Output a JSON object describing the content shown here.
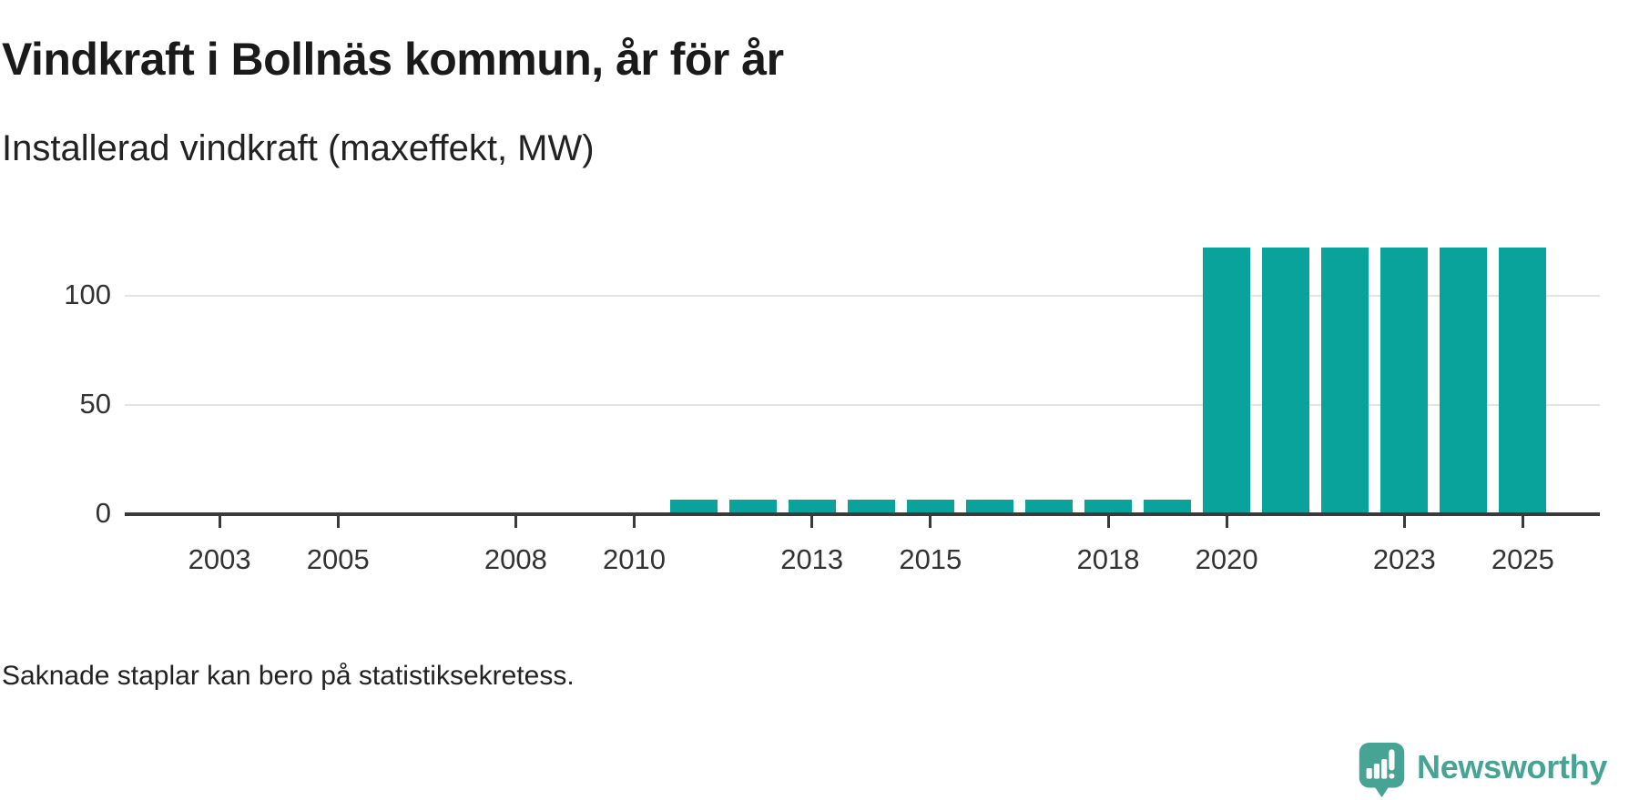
{
  "header": {
    "title": "Vindkraft i Bollnäs kommun, år för år",
    "subtitle": "Installerad vindkraft (maxeffekt, MW)"
  },
  "footnote": "Saknade staplar kan bero på statistiksekretess.",
  "branding": {
    "logo_text": "Newsworthy",
    "logo_icon": "newsworthy-speech-bubble-bar-chart-icon",
    "logo_color": "#47a393"
  },
  "colors": {
    "bar": "#09a39c",
    "axis": "#3a3a3a",
    "grid": "#e4e4e4",
    "title_text": "#1a1a1a",
    "body_text": "#222222",
    "tick_text": "#333333",
    "background": "#ffffff"
  },
  "chart_data": {
    "type": "bar",
    "title": "Vindkraft i Bollnäs kommun, år för år",
    "subtitle": "Installerad vindkraft (maxeffekt, MW)",
    "xlabel": "",
    "ylabel": "Installerad vindkraft (maxeffekt, MW)",
    "unit": "MW",
    "x_domain": [
      2001.4,
      2026.3
    ],
    "x_ticks": [
      2003,
      2005,
      2008,
      2010,
      2013,
      2015,
      2018,
      2020,
      2023,
      2025
    ],
    "y_ticks": [
      0,
      50,
      100
    ],
    "ylim": [
      0,
      152
    ],
    "grid": "horizontal",
    "legend": "none",
    "bars": [
      {
        "year": 2011,
        "value": 6.5
      },
      {
        "year": 2012,
        "value": 6.5
      },
      {
        "year": 2013,
        "value": 6.5
      },
      {
        "year": 2014,
        "value": 6.5
      },
      {
        "year": 2015,
        "value": 6.5
      },
      {
        "year": 2016,
        "value": 6.5
      },
      {
        "year": 2017,
        "value": 6.5
      },
      {
        "year": 2018,
        "value": 6.5
      },
      {
        "year": 2019,
        "value": 6.5
      },
      {
        "year": 2020,
        "value": 122
      },
      {
        "year": 2021,
        "value": 122
      },
      {
        "year": 2022,
        "value": 122
      },
      {
        "year": 2023,
        "value": 122
      },
      {
        "year": 2024,
        "value": 122
      },
      {
        "year": 2025,
        "value": 122
      }
    ],
    "years_without_bars": [
      2002,
      2003,
      2004,
      2005,
      2006,
      2007,
      2008,
      2009,
      2010
    ]
  }
}
